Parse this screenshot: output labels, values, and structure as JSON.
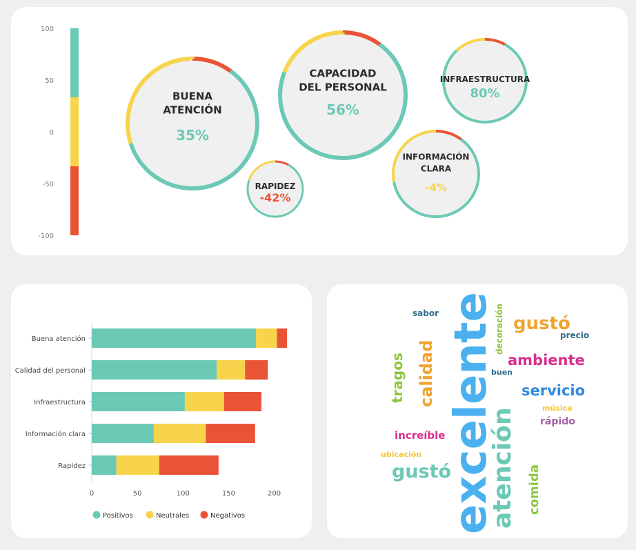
{
  "colors": {
    "positive": "#6cc9b5",
    "neutral": "#f7d44c",
    "negative": "#ea5436",
    "ring_bg": "#f0f0f0"
  },
  "scale": {
    "ticks": [
      "100",
      "50",
      "0",
      "-50",
      "-100"
    ]
  },
  "bubbles": [
    {
      "title": [
        "BUENA",
        "ATENCIÓN"
      ],
      "value": "35%",
      "score": 35,
      "pos": 0.6,
      "neu": 0.3,
      "neg": 0.1,
      "tone": "positive"
    },
    {
      "title": [
        "CAPACIDAD",
        "DEL PERSONAL"
      ],
      "value": "56%",
      "score": 56,
      "pos": 0.71,
      "neu": 0.19,
      "neg": 0.1,
      "tone": "positive"
    },
    {
      "title": [
        "INFRAESTRUCTURA"
      ],
      "value": "80%",
      "score": 80,
      "pos": 0.8,
      "neu": 0.12,
      "neg": 0.08,
      "tone": "positive"
    },
    {
      "title": [
        "RAPIDEZ"
      ],
      "value": "-42%",
      "score": -42,
      "pos": 0.72,
      "neu": 0.2,
      "neg": 0.08,
      "tone": "negative"
    },
    {
      "title": [
        "INFORMACIÓN",
        "CLARA"
      ],
      "value": "-4%",
      "score": -4,
      "pos": 0.62,
      "neu": 0.28,
      "neg": 0.1,
      "tone": "neutral"
    }
  ],
  "chart_data": {
    "type": "bar",
    "orientation": "horizontal",
    "stacked": true,
    "categories": [
      "Buena atención",
      "Calidad del personal",
      "Infraestructura",
      "Información clara",
      "Rapidez"
    ],
    "series": [
      {
        "name": "Positivos",
        "values": [
          180,
          137,
          102,
          68,
          27
        ]
      },
      {
        "name": "Neutrales",
        "values": [
          23,
          31,
          43,
          57,
          47
        ]
      },
      {
        "name": "Negativos",
        "values": [
          11,
          25,
          41,
          54,
          65
        ]
      }
    ],
    "xlim": [
      0,
      220
    ],
    "xticks": [
      "0",
      "50",
      "100",
      "150",
      "200"
    ],
    "legend": "bottom"
  },
  "wordcloud": [
    {
      "text": "sabor",
      "color": "#2f6e8e"
    },
    {
      "text": "decoración",
      "color": "#8cc63f"
    },
    {
      "text": "gustó",
      "color": "#f0a330"
    },
    {
      "text": "precio",
      "color": "#2f6e8e"
    },
    {
      "text": "excelente",
      "color": "#4bb0ef"
    },
    {
      "text": "calidad",
      "color": "#f0a330"
    },
    {
      "text": "tragos",
      "color": "#8cc63f"
    },
    {
      "text": "ambiente",
      "color": "#d92e8c"
    },
    {
      "text": "buen",
      "color": "#2f6e8e"
    },
    {
      "text": "servicio",
      "color": "#2e89df"
    },
    {
      "text": "música",
      "color": "#f3c63c"
    },
    {
      "text": "rápido",
      "color": "#a85fa7"
    },
    {
      "text": "increíble",
      "color": "#d92e8c"
    },
    {
      "text": "atención",
      "color": "#6cc9b5"
    },
    {
      "text": "ubicación",
      "color": "#f3c63c"
    },
    {
      "text": "gustó",
      "color": "#6cc9b5"
    },
    {
      "text": "comida",
      "color": "#8cc63f"
    }
  ]
}
